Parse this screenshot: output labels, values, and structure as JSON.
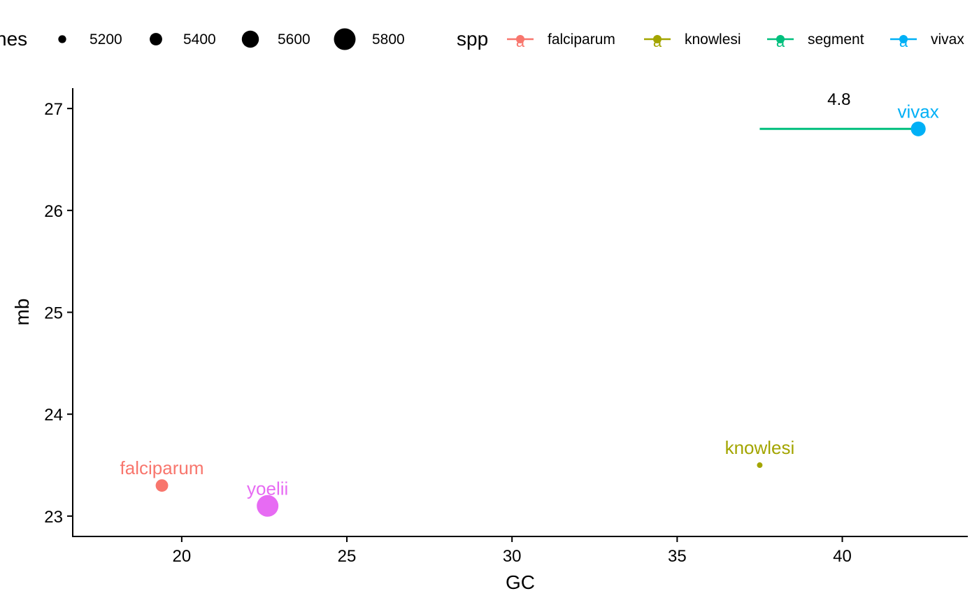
{
  "chart_data": {
    "type": "scatter",
    "xlabel": "GC",
    "ylabel": "mb",
    "xlim": [
      16.7,
      43.8
    ],
    "ylim": [
      22.8,
      27.2
    ],
    "x_ticks": [
      20,
      25,
      30,
      35,
      40
    ],
    "y_ticks": [
      23,
      24,
      25,
      26,
      27
    ],
    "grid": false,
    "size_legend": {
      "title": "nes",
      "title_partially_cropped": true,
      "entries": [
        {
          "label": "5200",
          "value": 5200
        },
        {
          "label": "5400",
          "value": 5400
        },
        {
          "label": "5600",
          "value": 5600
        },
        {
          "label": "5800",
          "value": 5800
        }
      ]
    },
    "color_legend": {
      "title": "spp",
      "placement": "top",
      "entries": [
        {
          "label": "falciparum",
          "color": "#F8766D"
        },
        {
          "label": "knowlesi",
          "color": "#A3A500"
        },
        {
          "label": "segment",
          "color": "#00BF7D"
        },
        {
          "label": "vivax",
          "color": "#00B0F6"
        }
      ]
    },
    "points": [
      {
        "label": "falciparum",
        "x": 19.4,
        "y": 23.3,
        "genes": 5400,
        "color": "#F8766D"
      },
      {
        "label": "yoelii",
        "x": 22.6,
        "y": 23.1,
        "genes": 5800,
        "color": "#E76BF3"
      },
      {
        "label": "knowlesi",
        "x": 37.5,
        "y": 23.5,
        "genes": 5100,
        "color": "#A3A500"
      },
      {
        "label": "vivax",
        "x": 42.3,
        "y": 26.8,
        "genes": 5500,
        "color": "#00B0F6"
      }
    ],
    "segment": {
      "x1": 37.5,
      "y1": 26.8,
      "x2": 42.3,
      "y2": 26.8,
      "color": "#00BF7D"
    },
    "annotation": {
      "text": "4.8",
      "x": 39.9,
      "y": 27.05
    }
  }
}
